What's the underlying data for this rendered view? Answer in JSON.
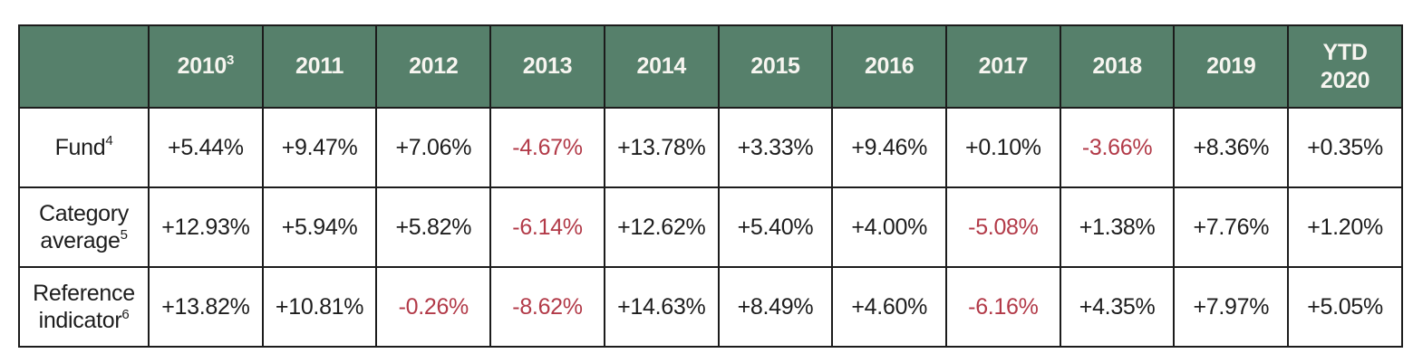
{
  "chart_data": {
    "type": "table",
    "title": "Fund annual performance table",
    "categories": [
      "2010",
      "2011",
      "2012",
      "2013",
      "2014",
      "2015",
      "2016",
      "2017",
      "2018",
      "2019",
      "YTD 2020"
    ],
    "series": [
      {
        "name": "Fund",
        "values": [
          5.44,
          9.47,
          7.06,
          -4.67,
          13.78,
          3.33,
          9.46,
          0.1,
          -3.66,
          8.36,
          0.35
        ]
      },
      {
        "name": "Category average",
        "values": [
          12.93,
          5.94,
          5.82,
          -6.14,
          12.62,
          5.4,
          4.0,
          -5.08,
          1.38,
          7.76,
          1.2
        ]
      },
      {
        "name": "Reference indicator",
        "values": [
          13.82,
          10.81,
          -0.26,
          -8.62,
          14.63,
          8.49,
          4.6,
          -6.16,
          4.35,
          7.97,
          5.05
        ]
      }
    ],
    "unit": "%",
    "footnote_markers": {
      "2010": "3",
      "Fund": "4",
      "Category average": "5",
      "Reference indicator": "6"
    },
    "legend_position": "none",
    "grid": "full-borders"
  },
  "colors": {
    "header_bg": "#56806B",
    "header_text": "#F7F5F0",
    "body_text": "#1D1D1D",
    "negative": "#B23A48",
    "border": "#1C1C1C",
    "page_bg": "#FFFFFF"
  },
  "table": {
    "corner_label": "",
    "columns": [
      {
        "lines": [
          "2010"
        ],
        "sup": "3"
      },
      {
        "lines": [
          "2011"
        ]
      },
      {
        "lines": [
          "2012"
        ]
      },
      {
        "lines": [
          "2013"
        ]
      },
      {
        "lines": [
          "2014"
        ]
      },
      {
        "lines": [
          "2015"
        ]
      },
      {
        "lines": [
          "2016"
        ]
      },
      {
        "lines": [
          "2017"
        ]
      },
      {
        "lines": [
          "2018"
        ]
      },
      {
        "lines": [
          "2019"
        ]
      },
      {
        "lines": [
          "YTD",
          "2020"
        ]
      }
    ],
    "rows": [
      {
        "label_lines": [
          "Fund"
        ],
        "sup": "4",
        "values": [
          "+5.44%",
          "+9.47%",
          "+7.06%",
          "-4.67%",
          "+13.78%",
          "+3.33%",
          "+9.46%",
          "+0.10%",
          "-3.66%",
          "+8.36%",
          "+0.35%"
        ]
      },
      {
        "label_lines": [
          "Category",
          "average"
        ],
        "sup": "5",
        "values": [
          "+12.93%",
          "+5.94%",
          "+5.82%",
          "-6.14%",
          "+12.62%",
          "+5.40%",
          "+4.00%",
          "-5.08%",
          "+1.38%",
          "+7.76%",
          "+1.20%"
        ]
      },
      {
        "label_lines": [
          "Reference",
          "indicator"
        ],
        "sup": "6",
        "values": [
          "+13.82%",
          "+10.81%",
          "-0.26%",
          "-8.62%",
          "+14.63%",
          "+8.49%",
          "+4.60%",
          "-6.16%",
          "+4.35%",
          "+7.97%",
          "+5.05%"
        ]
      }
    ]
  }
}
